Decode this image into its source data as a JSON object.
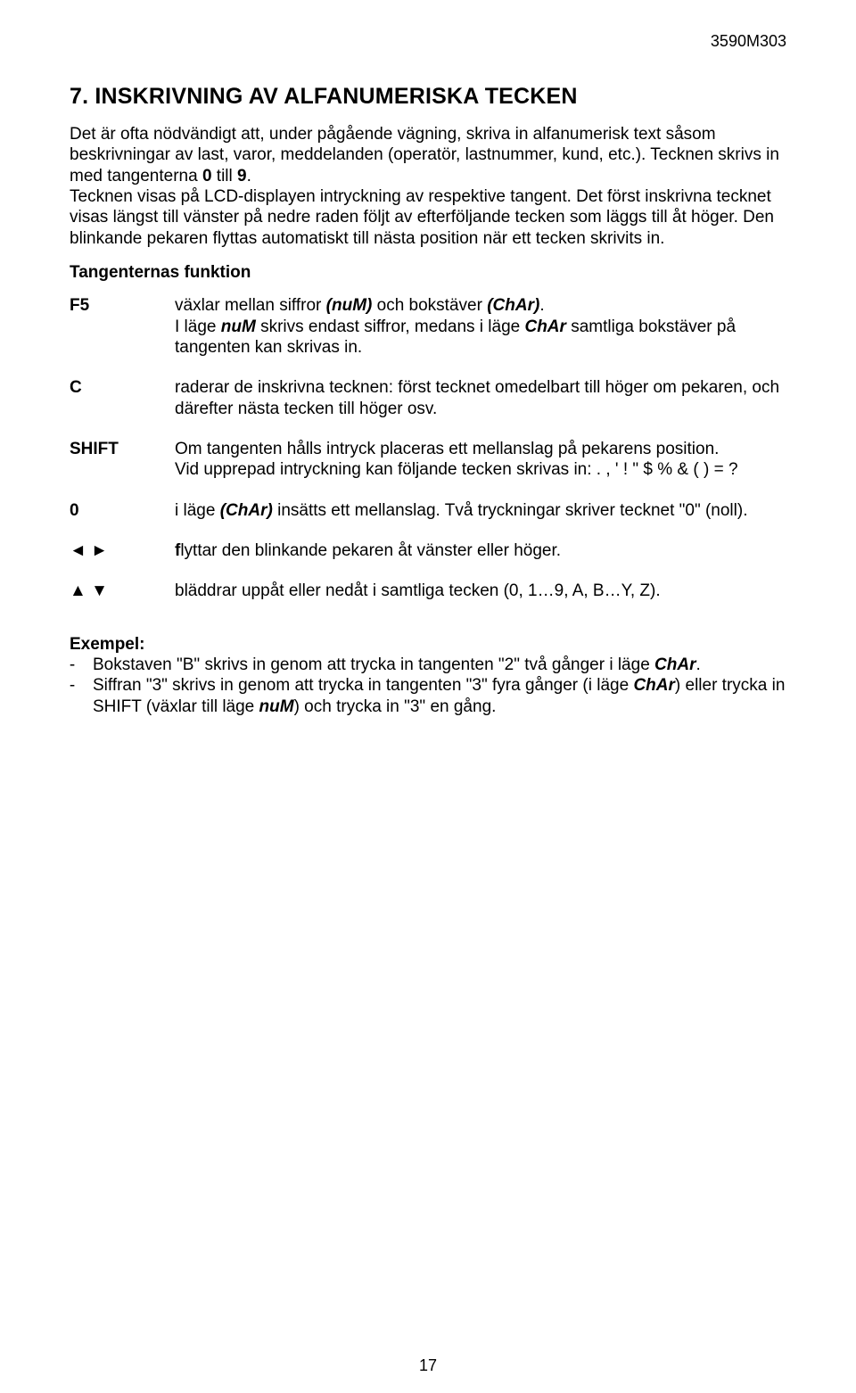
{
  "doc_id": "3590M303",
  "page_number": "17",
  "title": "7. INSKRIVNING AV ALFANUMERISKA TECKEN",
  "intro_parts": {
    "p1a": "Det är ofta nödvändigt att, under pågående vägning, skriva in alfanumerisk text såsom beskrivningar av last, varor, meddelanden (operatör, lastnummer, kund, etc.). Tecknen skrivs in med tangenterna ",
    "p1b_bold": "0",
    "p1c": " till ",
    "p1d_bold": "9",
    "p1e": ".",
    "p2": "Tecknen visas på LCD-displayen intryckning av respektive tangent. Det först inskrivna tecknet visas längst till vänster på nedre raden följt av efterföljande tecken som läggs till åt höger. Den blinkande pekaren flyttas automatiskt till nästa position när ett tecken skrivits in."
  },
  "subheading": "Tangenternas funktion",
  "rows": {
    "f5": {
      "key": "F5",
      "a": "växlar mellan siffror ",
      "b_bi": "(nuM)",
      "c": " och bokstäver ",
      "d_bi": "(ChAr)",
      "e": ".",
      "f": "I läge ",
      "g_bi": "nuM",
      "h": " skrivs endast siffror, medans i läge ",
      "i_bi": "ChAr",
      "j": " samtliga bokstäver på tangenten kan skrivas in."
    },
    "c": {
      "key": "C",
      "text": "raderar de inskrivna tecknen: först tecknet omedelbart till höger om pekaren, och därefter nästa tecken till höger osv."
    },
    "shift": {
      "key": "SHIFT",
      "a": "Om tangenten hålls intryck placeras ett mellanslag på pekarens position.",
      "b": "Vid upprepad intryckning kan följande tecken skrivas in: .  ,  '  ! \" $ % & ( ) = ?"
    },
    "zero": {
      "key": "0",
      "a": "i läge ",
      "b_bi": "(ChAr)",
      "c": " insätts ett mellanslag. Två tryckningar skriver tecknet \"0\" (noll)."
    },
    "lr": {
      "key": "◄ ►",
      "a_bold": "f",
      "b": "lyttar den blinkande pekaren åt vänster eller höger."
    },
    "ud": {
      "key": "▲ ▼",
      "text": "bläddrar uppåt eller nedåt i samtliga tecken (0, 1…9, A, B…Y, Z)."
    }
  },
  "example": {
    "hdr": "Exempel:",
    "li1_a": "Bokstaven \"B\" skrivs in genom att trycka in tangenten \"2\" två gånger i läge ",
    "li1_b_bi": "ChAr",
    "li1_c": ".",
    "li2_a": "Siffran \"3\" skrivs in genom att trycka in tangenten \"3\" fyra gånger (i läge ",
    "li2_b_bi": "ChAr",
    "li2_c": ") eller trycka in SHIFT (växlar till läge ",
    "li2_d_bi": "nuM",
    "li2_e": ") och trycka in \"3\" en gång."
  }
}
